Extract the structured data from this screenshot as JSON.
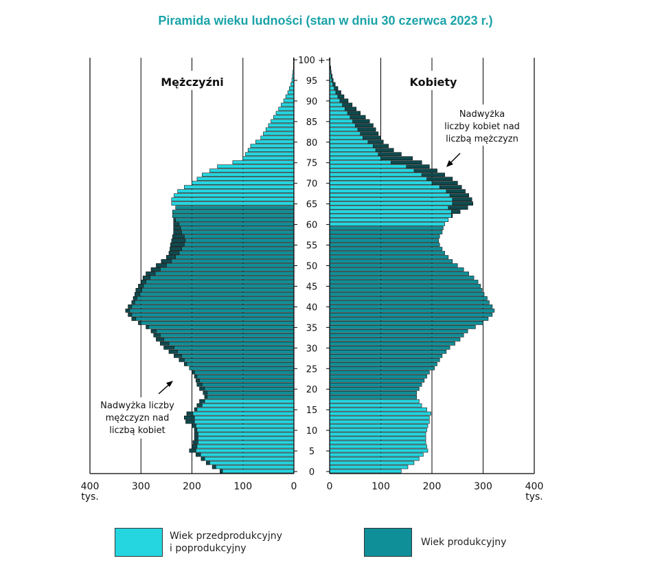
{
  "title": "Piramida wieku ludności (stan w dniu 30 czerwca 2023 r.)",
  "colors": {
    "non_working": "#25d6e0",
    "working": "#0f8f98",
    "surplus": "#0e4b4f",
    "title": "#1aa3a8",
    "grid": "#000000"
  },
  "legend": {
    "non_working_line1": "Wiek przedprodukcyjny",
    "non_working_line2": "i poprodukcyjny",
    "working": "Wiek produkcyjny"
  },
  "chart_data": {
    "type": "bar",
    "orientation": "horizontal-pyramid",
    "title": "Piramida wieku ludności (stan w dniu 30 czerwca 2023 r.)",
    "unit": "tys.",
    "xlim": [
      0,
      400
    ],
    "x_ticks": [
      "400",
      "300",
      "200",
      "100",
      "0",
      "0",
      "100",
      "200",
      "300",
      "400"
    ],
    "y_ticks": [
      "0",
      "5",
      "10",
      "15",
      "20",
      "25",
      "30",
      "35",
      "40",
      "45",
      "50",
      "55",
      "60",
      "65",
      "70",
      "75",
      "80",
      "85",
      "90",
      "95",
      "100 +"
    ],
    "male_label": "Mężczyźni",
    "female_label": "Kobiety",
    "annotation_male": [
      "Nadwyżka liczby",
      "mężczyzn nad",
      "liczbą kobiet"
    ],
    "annotation_female": [
      "Nadwyżka",
      "liczby kobiet nad",
      "liczbą mężczyzn"
    ],
    "working_age": {
      "male": [
        18,
        64
      ],
      "female": [
        18,
        59
      ]
    },
    "ages": [
      0,
      1,
      2,
      3,
      4,
      5,
      6,
      7,
      8,
      9,
      10,
      11,
      12,
      13,
      14,
      15,
      16,
      17,
      18,
      19,
      20,
      21,
      22,
      23,
      24,
      25,
      26,
      27,
      28,
      29,
      30,
      31,
      32,
      33,
      34,
      35,
      36,
      37,
      38,
      39,
      40,
      41,
      42,
      43,
      44,
      45,
      46,
      47,
      48,
      49,
      50,
      51,
      52,
      53,
      54,
      55,
      56,
      57,
      58,
      59,
      60,
      61,
      62,
      63,
      64,
      65,
      66,
      67,
      68,
      69,
      70,
      71,
      72,
      73,
      74,
      75,
      76,
      77,
      78,
      79,
      80,
      81,
      82,
      83,
      84,
      85,
      86,
      87,
      88,
      89,
      90,
      91,
      92,
      93,
      94,
      95,
      96,
      97,
      98,
      99,
      100
    ],
    "male": [
      145,
      160,
      172,
      182,
      192,
      205,
      200,
      198,
      195,
      195,
      195,
      200,
      212,
      215,
      210,
      195,
      190,
      185,
      175,
      178,
      185,
      190,
      192,
      195,
      200,
      205,
      215,
      225,
      235,
      245,
      255,
      262,
      270,
      275,
      280,
      290,
      305,
      318,
      325,
      330,
      325,
      318,
      315,
      312,
      310,
      305,
      300,
      296,
      290,
      280,
      270,
      260,
      250,
      245,
      243,
      242,
      240,
      238,
      236,
      236,
      236,
      236,
      238,
      238,
      232,
      240,
      240,
      235,
      228,
      215,
      200,
      190,
      180,
      165,
      150,
      120,
      100,
      95,
      90,
      85,
      75,
      65,
      60,
      55,
      50,
      45,
      40,
      35,
      30,
      25,
      20,
      16,
      12,
      9,
      6,
      4,
      3,
      2,
      1,
      1,
      1
    ],
    "female": [
      140,
      153,
      165,
      175,
      183,
      192,
      190,
      188,
      188,
      188,
      190,
      192,
      195,
      195,
      198,
      190,
      180,
      175,
      170,
      170,
      175,
      180,
      185,
      190,
      195,
      205,
      210,
      215,
      220,
      228,
      235,
      245,
      255,
      262,
      270,
      285,
      300,
      310,
      318,
      322,
      318,
      312,
      308,
      302,
      298,
      295,
      290,
      282,
      272,
      262,
      250,
      240,
      232,
      225,
      220,
      215,
      213,
      215,
      220,
      222,
      225,
      232,
      240,
      255,
      270,
      280,
      278,
      272,
      265,
      258,
      250,
      240,
      225,
      210,
      195,
      180,
      162,
      140,
      125,
      115,
      105,
      100,
      95,
      90,
      85,
      78,
      70,
      60,
      52,
      44,
      36,
      28,
      22,
      16,
      11,
      7,
      5,
      3,
      2,
      1,
      1
    ]
  }
}
